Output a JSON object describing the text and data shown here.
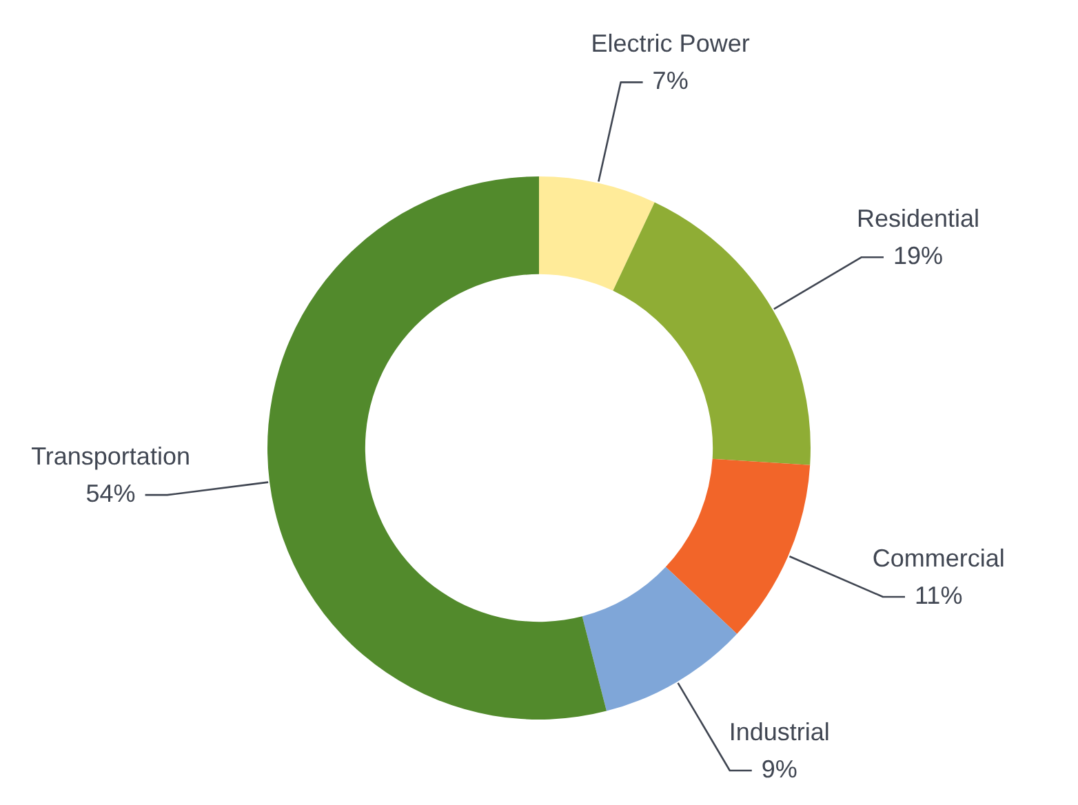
{
  "chart_data": {
    "type": "donut",
    "categories": [
      "Electric Power",
      "Residential",
      "Commercial",
      "Industrial",
      "Transportation"
    ],
    "values": [
      7,
      19,
      11,
      9,
      54
    ],
    "value_labels": [
      "7%",
      "19%",
      "11%",
      "9%",
      "54%"
    ],
    "colors": [
      "#ffeb99",
      "#8fad35",
      "#f26529",
      "#7fa6d8",
      "#528a2c"
    ],
    "legend": false
  }
}
